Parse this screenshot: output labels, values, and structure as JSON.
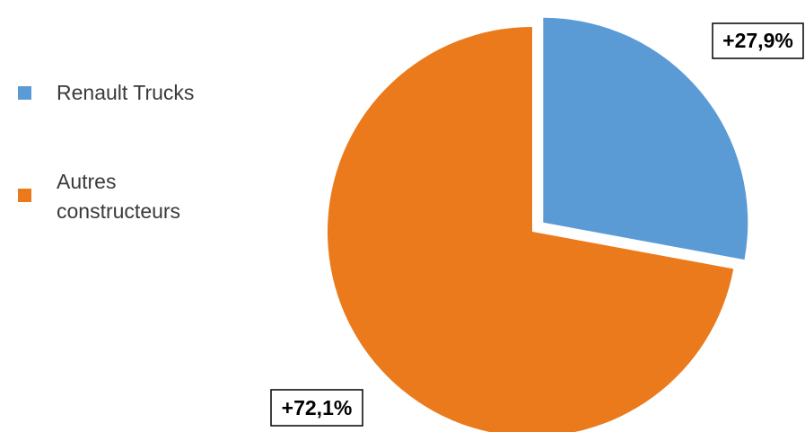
{
  "chart_data": {
    "type": "pie",
    "categories": [
      "Renault Trucks",
      "Autres constructeurs"
    ],
    "values": [
      27.9,
      72.1
    ],
    "data_labels": [
      "+27,9%",
      "+72,1%"
    ],
    "colors": [
      "#5b9bd5",
      "#ea7a1b"
    ],
    "exploded": [
      true,
      false
    ],
    "legend_position": "left",
    "title": ""
  },
  "legend": {
    "items": [
      {
        "lines": [
          "Renault Trucks"
        ],
        "color": "#5b9bd5"
      },
      {
        "lines": [
          "Autres",
          "constructeurs"
        ],
        "color": "#ea7a1b"
      }
    ]
  }
}
